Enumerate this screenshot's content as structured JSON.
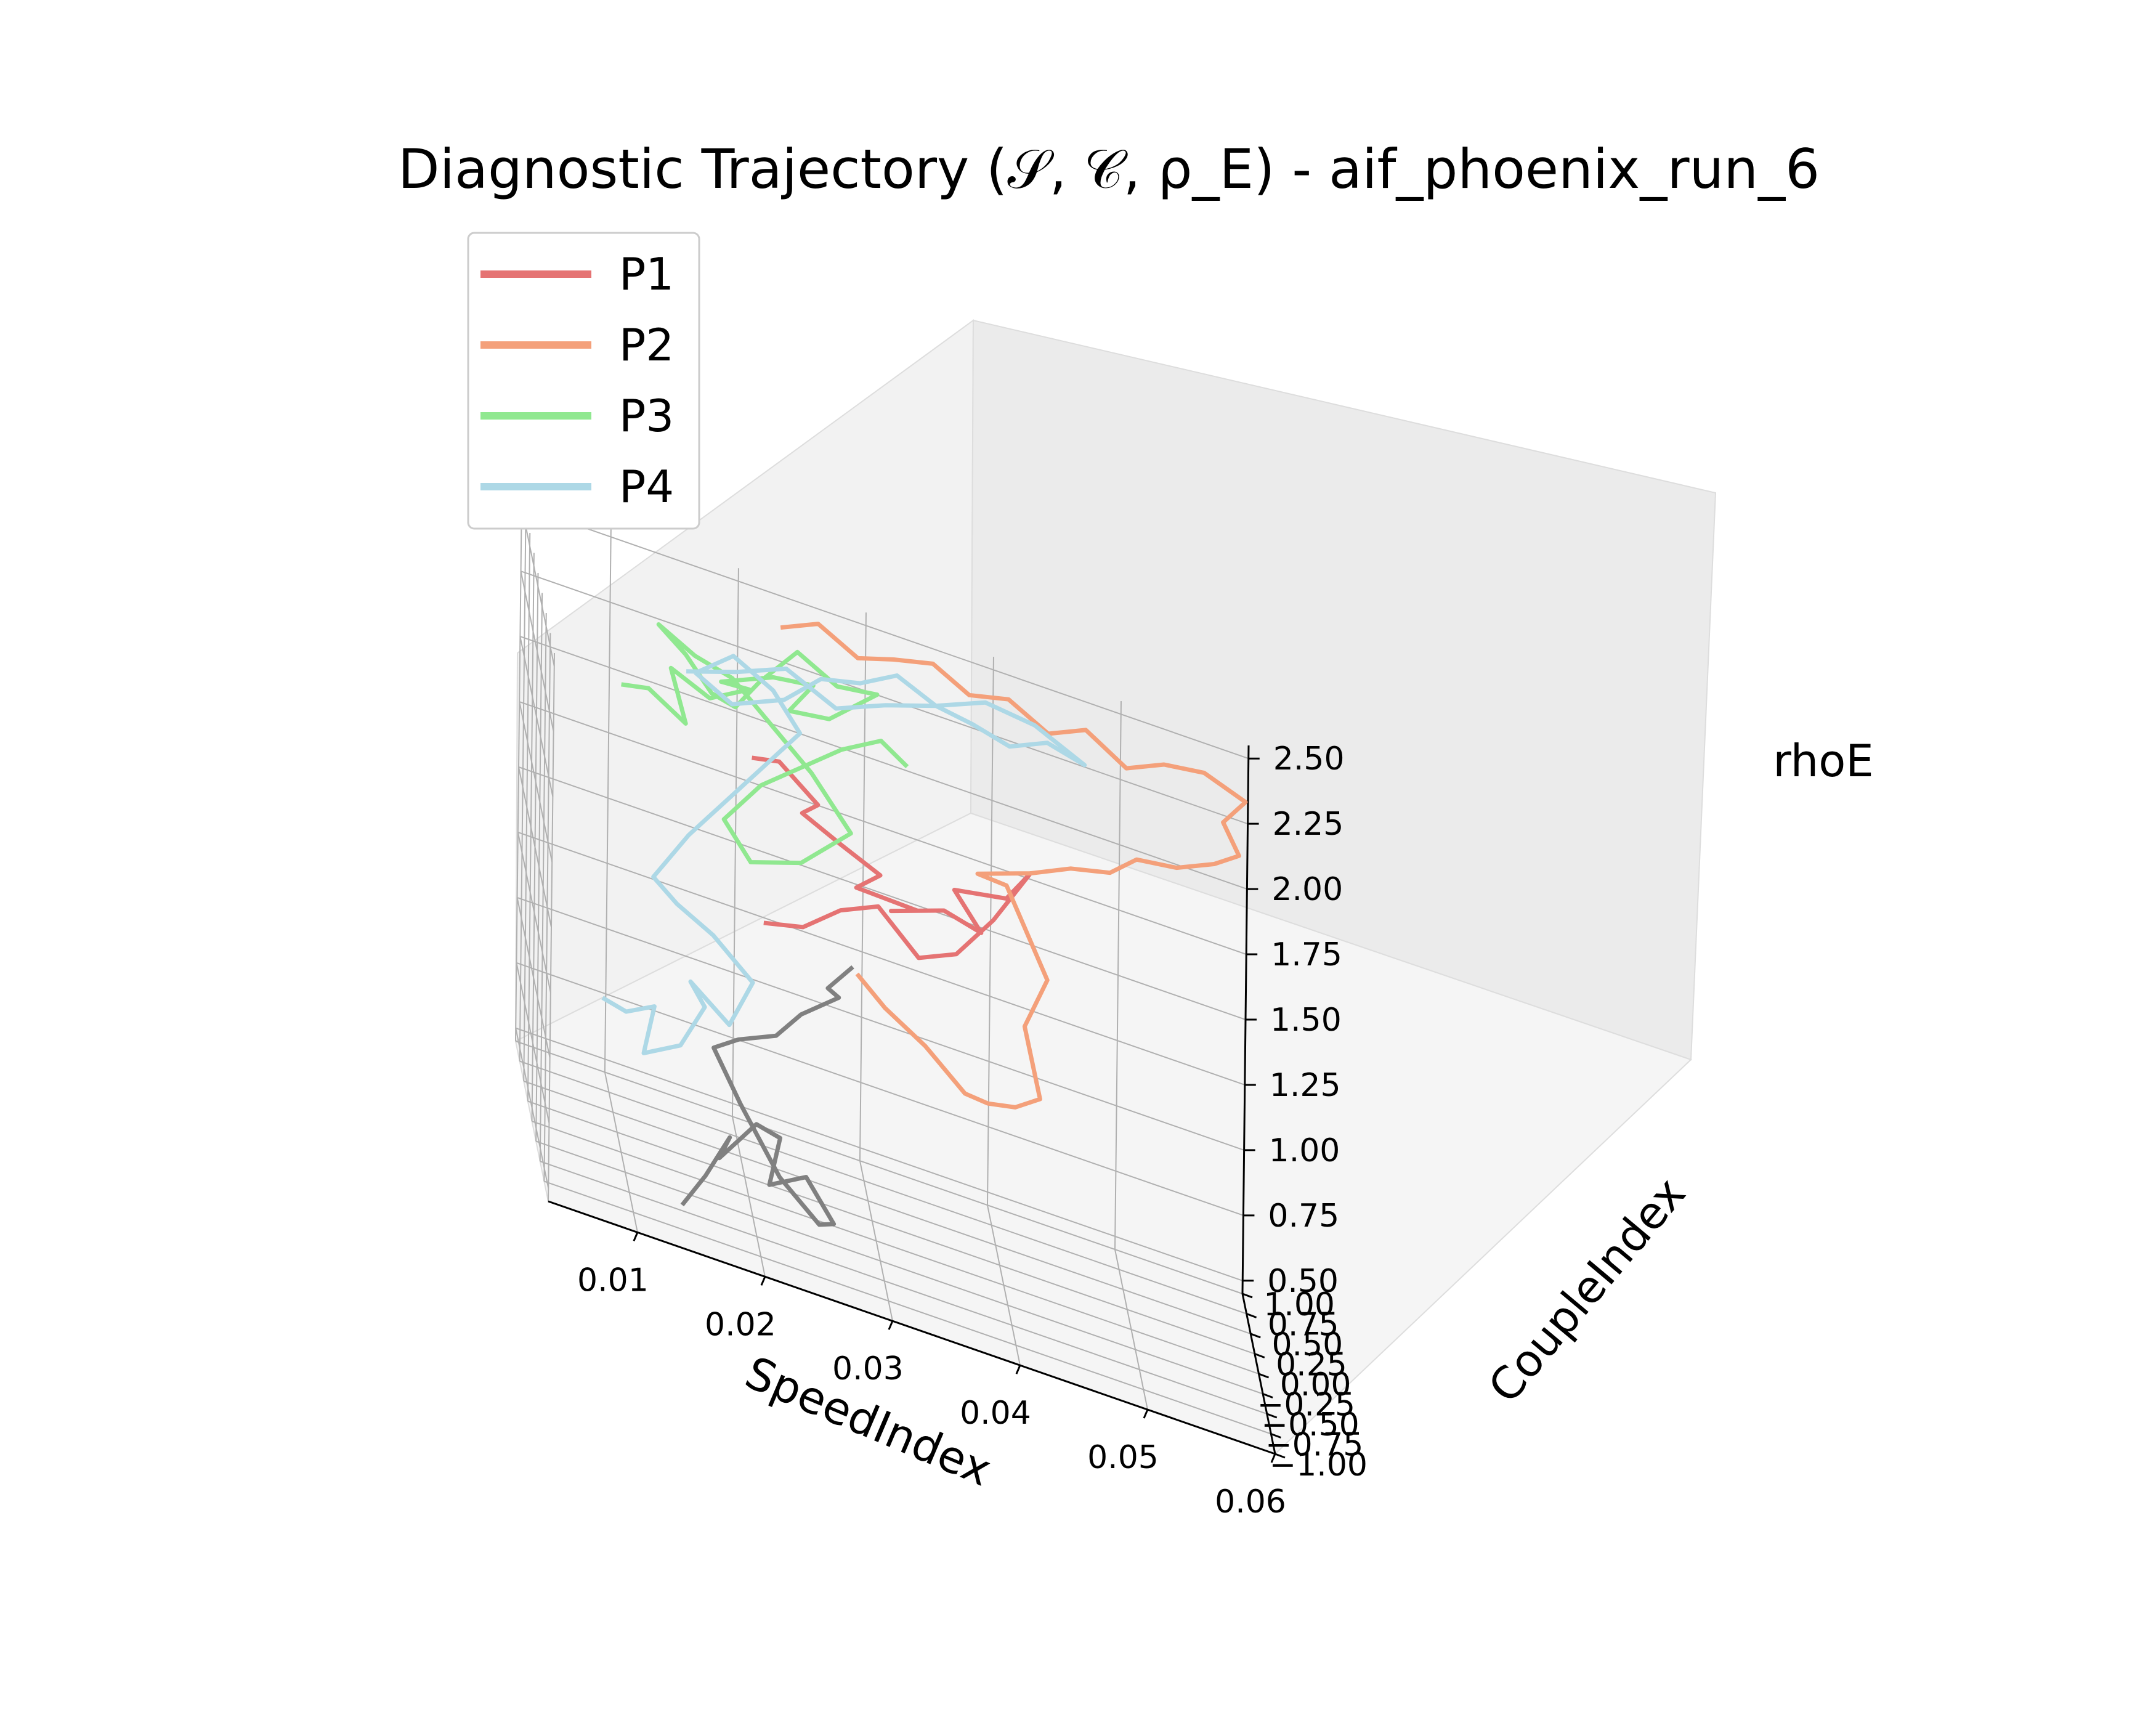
{
  "chart_data": {
    "type": "line",
    "projection": "3d",
    "title": "Diagnostic Trajectory (𝒮, 𝒞, ρ_E) - aif_phoenix_run_6",
    "xlabel": "SpeedIndex",
    "ylabel": "CoupleIndex",
    "zlabel": "rhoE",
    "xlim": [
      0.003,
      0.06
    ],
    "ylim": [
      -1.0,
      1.0
    ],
    "zlim": [
      0.45,
      2.55
    ],
    "x_ticks": [
      "0.01",
      "0.02",
      "0.03",
      "0.04",
      "0.05",
      "0.06"
    ],
    "y_ticks": [
      "−1.00",
      "−0.75",
      "−0.50",
      "−0.25",
      "0.00",
      "0.25",
      "0.50",
      "0.75",
      "1.00"
    ],
    "z_ticks": [
      "0.50",
      "0.75",
      "1.00",
      "1.25",
      "1.50",
      "1.75",
      "2.00",
      "2.25",
      "2.50"
    ],
    "grid": true,
    "legend_position": "top-left",
    "colors": {
      "P1": "#e57373",
      "P2": "#f4a07a",
      "P3": "#90e890",
      "P4": "#add8e6",
      "unlabeled": "#808080"
    },
    "series": [
      {
        "name": "P1",
        "x": [
          0.02,
          0.022,
          0.025,
          0.024,
          0.027,
          0.03,
          0.028,
          0.033,
          0.031,
          0.035,
          0.038,
          0.036,
          0.04,
          0.042,
          0.039,
          0.036,
          0.033,
          0.03,
          0.027,
          0.024,
          0.021
        ],
        "y": [
          0.1,
          0.0,
          -0.05,
          0.12,
          0.05,
          0.0,
          -0.1,
          0.05,
          0.1,
          0.0,
          0.05,
          0.15,
          0.1,
          0.2,
          0.1,
          0.0,
          -0.05,
          0.1,
          0.05,
          0.0,
          0.05
        ],
        "z": [
          2.1,
          2.15,
          2.05,
          1.95,
          1.9,
          1.85,
          1.8,
          1.75,
          1.7,
          1.8,
          1.75,
          1.85,
          1.9,
          2.0,
          1.8,
          1.65,
          1.6,
          1.7,
          1.65,
          1.55,
          1.5
        ]
      },
      {
        "name": "P2",
        "x": [
          0.028,
          0.03,
          0.033,
          0.036,
          0.038,
          0.04,
          0.042,
          0.041,
          0.043,
          0.04,
          0.038,
          0.042,
          0.045,
          0.048,
          0.05,
          0.053,
          0.056,
          0.058,
          0.057,
          0.059,
          0.056,
          0.053,
          0.05,
          0.047,
          0.044,
          0.041,
          0.038,
          0.035,
          0.032,
          0.029,
          0.026,
          0.023
        ],
        "y": [
          -0.2,
          -0.35,
          -0.5,
          -0.6,
          -0.45,
          -0.55,
          -0.5,
          -0.3,
          -0.1,
          0.1,
          0.3,
          0.2,
          0.1,
          0.05,
          0.0,
          -0.1,
          -0.05,
          0.0,
          0.2,
          0.4,
          0.6,
          0.7,
          0.65,
          0.8,
          0.75,
          0.85,
          0.9,
          0.8,
          0.85,
          0.7,
          0.8,
          0.75
        ],
        "z": [
          1.5,
          1.45,
          1.4,
          1.3,
          1.25,
          1.3,
          1.35,
          1.55,
          1.7,
          1.95,
          1.9,
          2.0,
          2.1,
          2.15,
          2.25,
          2.3,
          2.35,
          2.4,
          2.45,
          2.5,
          2.5,
          2.45,
          2.4,
          2.45,
          2.4,
          2.45,
          2.4,
          2.5,
          2.45,
          2.45,
          2.5,
          2.45
        ]
      },
      {
        "name": "P3",
        "x": [
          0.01,
          0.012,
          0.015,
          0.014,
          0.017,
          0.02,
          0.018,
          0.022,
          0.025,
          0.023,
          0.026,
          0.028,
          0.03,
          0.027,
          0.024,
          0.021,
          0.019,
          0.017,
          0.015,
          0.013,
          0.016,
          0.019,
          0.022,
          0.025,
          0.028,
          0.024,
          0.02,
          0.018,
          0.021,
          0.024,
          0.027,
          0.03,
          0.032
        ],
        "y": [
          0.3,
          0.2,
          0.25,
          0.4,
          0.35,
          0.3,
          0.45,
          0.4,
          0.3,
          0.2,
          0.1,
          0.2,
          0.3,
          0.4,
          0.5,
          0.45,
          0.35,
          0.25,
          0.3,
          0.4,
          0.5,
          0.55,
          0.45,
          0.35,
          0.25,
          0.15,
          0.1,
          0.2,
          0.3,
          0.2,
          0.1,
          0.05,
          0.0
        ],
        "z": [
          2.15,
          2.2,
          2.1,
          2.25,
          2.2,
          2.3,
          2.25,
          2.35,
          2.4,
          2.3,
          2.35,
          2.4,
          2.45,
          2.4,
          2.45,
          2.3,
          2.2,
          2.25,
          2.35,
          2.4,
          2.3,
          2.25,
          2.15,
          2.05,
          1.9,
          1.75,
          1.7,
          1.8,
          1.95,
          2.1,
          2.25,
          2.35,
          2.3
        ]
      },
      {
        "name": "P4",
        "x": [
          0.008,
          0.01,
          0.012,
          0.011,
          0.014,
          0.016,
          0.015,
          0.018,
          0.02,
          0.017,
          0.014,
          0.012,
          0.015,
          0.018,
          0.021,
          0.024,
          0.022,
          0.019,
          0.016,
          0.019,
          0.023,
          0.026,
          0.029,
          0.032,
          0.035,
          0.038,
          0.041,
          0.044,
          0.047,
          0.043,
          0.039,
          0.035,
          0.031,
          0.027,
          0.023,
          0.019,
          0.015
        ],
        "y": [
          -0.3,
          -0.2,
          -0.35,
          -0.5,
          -0.4,
          -0.3,
          -0.2,
          -0.25,
          -0.1,
          0.0,
          -0.1,
          -0.2,
          0.0,
          0.1,
          0.2,
          0.3,
          0.4,
          0.5,
          0.45,
          0.55,
          0.5,
          0.6,
          0.55,
          0.65,
          0.6,
          0.7,
          0.75,
          0.8,
          0.85,
          0.8,
          0.7,
          0.6,
          0.55,
          0.45,
          0.4,
          0.3,
          0.25
        ],
        "z": [
          1.1,
          1.05,
          1.15,
          1.0,
          1.05,
          1.2,
          1.25,
          1.15,
          1.3,
          1.4,
          1.5,
          1.6,
          1.75,
          1.9,
          2.05,
          2.2,
          2.3,
          2.35,
          2.25,
          2.15,
          2.25,
          2.35,
          2.4,
          2.45,
          2.4,
          2.35,
          2.3,
          2.35,
          2.3,
          2.4,
          2.45,
          2.4,
          2.35,
          2.3,
          2.4,
          2.35,
          2.3
        ]
      },
      {
        "name": "",
        "x": [
          0.014,
          0.016,
          0.018,
          0.017,
          0.02,
          0.022,
          0.021,
          0.024,
          0.026,
          0.025,
          0.022,
          0.019,
          0.017,
          0.019,
          0.022,
          0.024,
          0.027,
          0.026,
          0.028
        ],
        "y": [
          -0.6,
          -0.45,
          -0.35,
          -0.5,
          -0.4,
          -0.3,
          -0.45,
          -0.35,
          -0.5,
          -0.4,
          -0.3,
          -0.2,
          -0.1,
          -0.05,
          0.0,
          0.05,
          0.1,
          0.0,
          0.05
        ],
        "z": [
          0.5,
          0.6,
          0.75,
          0.7,
          0.85,
          0.8,
          0.65,
          0.7,
          0.6,
          0.55,
          0.65,
          0.85,
          1.0,
          1.05,
          1.1,
          1.2,
          1.3,
          1.35,
          1.45
        ]
      }
    ]
  }
}
